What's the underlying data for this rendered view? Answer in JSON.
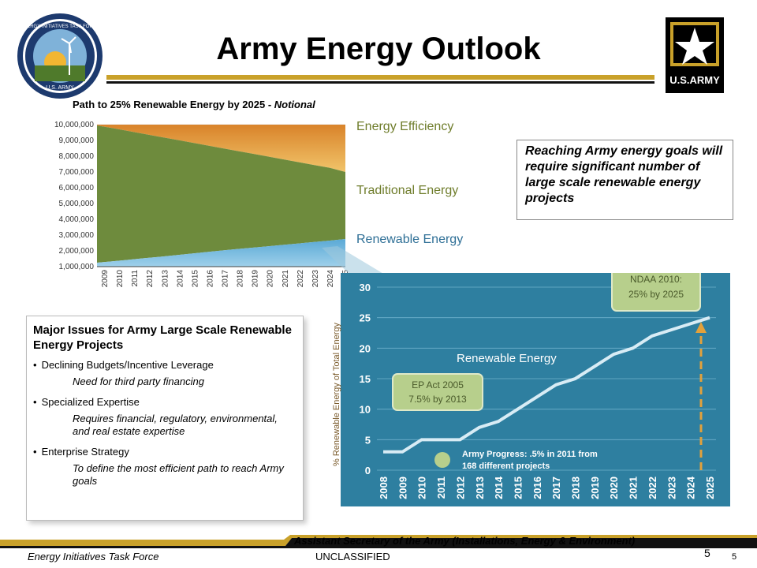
{
  "title": "Army Energy Outlook",
  "chart1": {
    "title": "Path to 25% Renewable Energy by 2025 - ",
    "title_suffix": "Notional",
    "legend": {
      "efficiency": "Energy Efficiency",
      "traditional": "Traditional Energy",
      "renewable": "Renewable Energy"
    },
    "yticks": [
      "10,000,000",
      "9,000,000",
      "8,000,000",
      "7,000,000",
      "6,000,000",
      "5,000,000",
      "4,000,000",
      "3,000,000",
      "2,000,000",
      "1,000,000"
    ],
    "xticks": [
      "2009",
      "2010",
      "2011",
      "2012",
      "2013",
      "2014",
      "2015",
      "2016",
      "2017",
      "2018",
      "2019",
      "2020",
      "2021",
      "2022",
      "2023",
      "2024",
      "2025"
    ]
  },
  "callout": "Reaching Army energy goals will require significant number of large scale renewable energy projects",
  "issues": {
    "title": "Major Issues for Army Large Scale Renewable Energy Projects",
    "items": [
      {
        "bullet": "Declining Budgets/Incentive Leverage",
        "sub": "Need for third party financing"
      },
      {
        "bullet": "Specialized Expertise",
        "sub": "Requires financial, regulatory, environmental, and real estate expertise"
      },
      {
        "bullet": "Enterprise Strategy",
        "sub": "To define the most efficient path to reach Army goals"
      }
    ]
  },
  "chart2": {
    "ylabel": "% Renewable Energy of Total Energy",
    "series_label": "Renewable Energy",
    "annot_ep": [
      "EP Act 2005",
      "7.5% by 2013"
    ],
    "annot_ndaa": [
      "NDAA 2010:",
      "25% by 2025"
    ],
    "progress": [
      "Army Progress: .5% in 2011 from",
      "168 different projects"
    ]
  },
  "chart_data": [
    {
      "type": "area",
      "title": "Path to 25% Renewable Energy by 2025 - Notional",
      "x": [
        2009,
        2010,
        2011,
        2012,
        2013,
        2014,
        2015,
        2016,
        2017,
        2018,
        2019,
        2020,
        2021,
        2022,
        2023,
        2024,
        2025
      ],
      "ylim": [
        1000000,
        10000000
      ],
      "series": [
        {
          "name": "Renewable Energy",
          "values": [
            1250000,
            1340000,
            1430000,
            1530000,
            1620000,
            1720000,
            1820000,
            1920000,
            2020000,
            2110000,
            2200000,
            2290000,
            2380000,
            2470000,
            2560000,
            2650000,
            2750000
          ]
        },
        {
          "name": "Traditional Energy",
          "values": [
            9950000,
            9780000,
            9600000,
            9420000,
            9240000,
            9060000,
            8880000,
            8700000,
            8520000,
            8340000,
            8160000,
            7980000,
            7800000,
            7620000,
            7440000,
            7260000,
            7000000
          ]
        },
        {
          "name": "Energy Efficiency",
          "values": [
            10000000,
            10000000,
            10000000,
            10000000,
            10000000,
            10000000,
            10000000,
            10000000,
            10000000,
            10000000,
            10000000,
            10000000,
            10000000,
            10000000,
            10000000,
            10000000,
            10000000
          ]
        }
      ]
    },
    {
      "type": "line",
      "x": [
        2008,
        2009,
        2010,
        2011,
        2012,
        2013,
        2014,
        2015,
        2016,
        2017,
        2018,
        2019,
        2020,
        2021,
        2022,
        2023,
        2024,
        2025
      ],
      "series": [
        {
          "name": "Renewable Energy",
          "values": [
            3,
            3,
            5,
            5,
            5,
            7,
            8,
            10,
            12,
            14,
            15,
            17,
            19,
            20,
            22,
            23,
            24,
            25
          ]
        }
      ],
      "ylim": [
        0,
        30
      ],
      "yticks": [
        0,
        5,
        10,
        15,
        20,
        25,
        30
      ],
      "ylabel": "% Renewable Energy of Total Energy",
      "annotations": [
        "EP Act 2005 7.5% by 2013",
        "NDAA 2010: 25% by 2025",
        "Army Progress: .5% in 2011 from 168 different projects"
      ]
    }
  ],
  "footer": {
    "office": "Assistant Secretary of the Army (Installations, Energy & Environment)",
    "org": "Energy Initiatives Task Force",
    "classification": "UNCLASSIFIED",
    "page": "5",
    "page_small": "5"
  },
  "logos": {
    "left": "ENERGY INITIATIVES TASK FORCE",
    "left_sub": "U.S. ARMY",
    "right": "U.S.ARMY"
  },
  "colors": {
    "gold": "#c9a12a",
    "chart_bg": "#2e7fa0",
    "traditional": "#6e8b3d",
    "efficiency": "#e3a13b"
  }
}
